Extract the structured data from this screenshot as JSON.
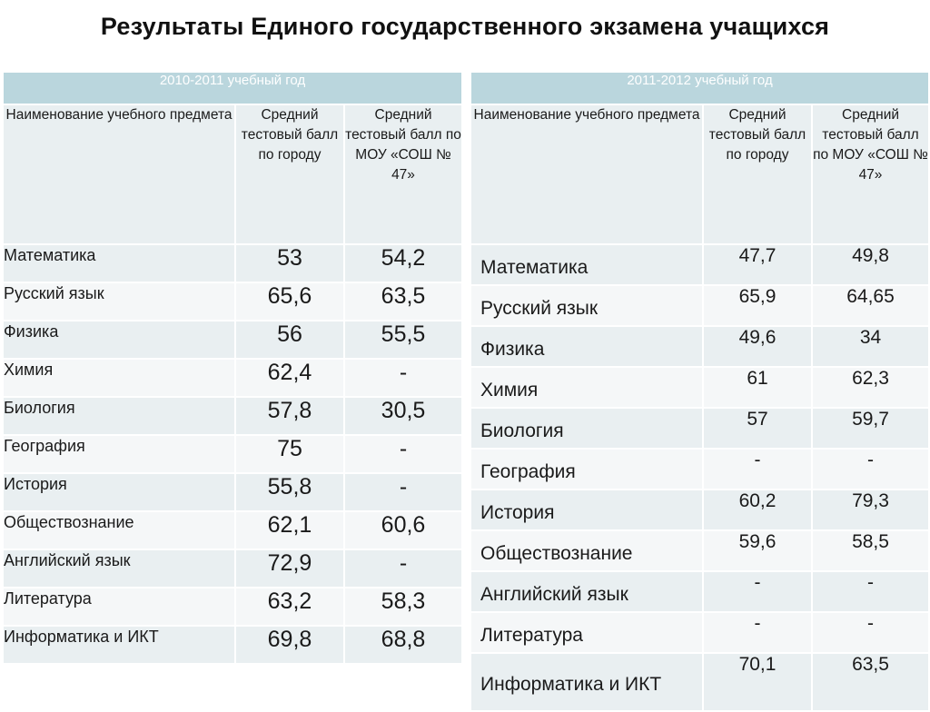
{
  "title": "Результаты Единого государственного экзамена учащихся",
  "tables": [
    {
      "year": "2010-2011 учебный год",
      "headers": [
        "Наименование учебного предмета",
        "Средний тестовый балл по городу",
        "Средний тестовый балл по МОУ «СОШ № 47»"
      ],
      "rows": [
        {
          "subject": "Математика",
          "city": "53",
          "school": "54,2"
        },
        {
          "subject": "Русский язык",
          "city": "65,6",
          "school": "63,5"
        },
        {
          "subject": "Физика",
          "city": "56",
          "school": "55,5"
        },
        {
          "subject": "Химия",
          "city": "62,4",
          "school": "-"
        },
        {
          "subject": "Биология",
          "city": "57,8",
          "school": "30,5"
        },
        {
          "subject": "География",
          "city": "75",
          "school": "-"
        },
        {
          "subject": "История",
          "city": "55,8",
          "school": "-"
        },
        {
          "subject": "Обществознание",
          "city": "62,1",
          "school": "60,6"
        },
        {
          "subject": "Английский язык",
          "city": "72,9",
          "school": "-"
        },
        {
          "subject": "Литература",
          "city": "63,2",
          "school": "58,3"
        },
        {
          "subject": "Информатика и ИКТ",
          "city": "69,8",
          "school": "68,8"
        }
      ]
    },
    {
      "year": "2011-2012 учебный год",
      "headers": [
        "Наименование учебного предмета",
        "Средний тестовый балл по городу",
        "Средний тестовый балл по МОУ «СОШ № 47»"
      ],
      "rows": [
        {
          "subject": "Математика",
          "city": "47,7",
          "school": "49,8"
        },
        {
          "subject": "Русский язык",
          "city": "65,9",
          "school": "64,65"
        },
        {
          "subject": "Физика",
          "city": "49,6",
          "school": "34"
        },
        {
          "subject": "Химия",
          "city": "61",
          "school": "62,3"
        },
        {
          "subject": "Биология",
          "city": "57",
          "school": "59,7"
        },
        {
          "subject": "География",
          "city": "-",
          "school": "-"
        },
        {
          "subject": "История",
          "city": "60,2",
          "school": "79,3"
        },
        {
          "subject": "Обществознание",
          "city": "59,6",
          "school": "58,5"
        },
        {
          "subject": "Английский язык",
          "city": "-",
          "school": "-"
        },
        {
          "subject": "Литература",
          "city": "-",
          "school": "-"
        },
        {
          "subject": "Информатика и ИКТ",
          "city": "70,1",
          "school": "63,5"
        }
      ]
    }
  ]
}
